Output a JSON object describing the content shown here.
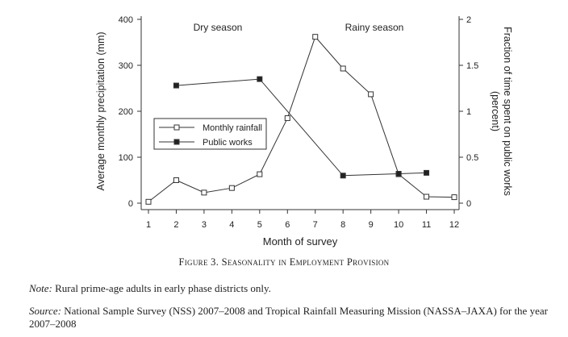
{
  "chart_data": {
    "type": "line",
    "x": [
      1,
      2,
      3,
      4,
      5,
      6,
      7,
      8,
      9,
      10,
      11,
      12
    ],
    "xlabel": "Month of survey",
    "ylabel_left": "Average monthly precipitation (mm)",
    "ylabel_right": "Fraction of time spent on public works (percent)",
    "ylim_left": [
      0,
      400
    ],
    "ylim_right": [
      0,
      2
    ],
    "yticks_left": [
      0,
      100,
      200,
      300,
      400
    ],
    "yticks_right": [
      "0",
      "0.5",
      "1",
      "1.5",
      "2"
    ],
    "xticks": [
      "1",
      "2",
      "3",
      "4",
      "5",
      "6",
      "7",
      "8",
      "9",
      "10",
      "11",
      "12"
    ],
    "annotations": [
      "Dry season",
      "Rainy season"
    ],
    "legend_position": "center-left",
    "series": [
      {
        "name": "Monthly rainfall",
        "axis": "left",
        "marker": "hollow-square",
        "x": [
          1,
          2,
          3,
          4,
          5,
          6,
          7,
          8,
          9,
          10,
          11,
          12
        ],
        "values": [
          3,
          50,
          23,
          33,
          63,
          185,
          362,
          293,
          237,
          63,
          14,
          13
        ]
      },
      {
        "name": "Public works",
        "axis": "right",
        "marker": "filled-square",
        "x": [
          2,
          5,
          8,
          10,
          11
        ],
        "values": [
          1.28,
          1.35,
          0.3,
          0.32,
          0.33
        ]
      }
    ]
  },
  "caption": "Figure 3. Seasonality in Employment Provision",
  "note_label": "Note:",
  "note_text": " Rural prime-age adults in early phase districts only.",
  "source_label": "Source:",
  "source_text": " National Sample Survey (NSS) 2007–2008 and Tropical Rainfall Measuring Mission (NASSA–JAXA) for the year 2007–2008"
}
